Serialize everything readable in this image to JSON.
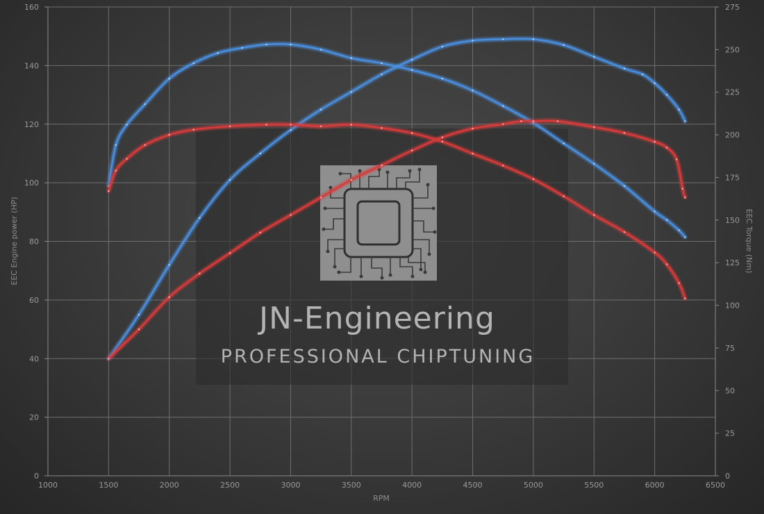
{
  "chart_data": {
    "type": "line",
    "xlabel": "RPM",
    "ylabel_left": "EEC Engine power (HP)",
    "ylabel_right": "EEC Torque (Nm)",
    "xlim": [
      1000,
      6500
    ],
    "ylim_left": [
      0,
      160
    ],
    "ylim_right": [
      0,
      275
    ],
    "x_ticks": [
      "1000",
      "1500",
      "2000",
      "2500",
      "3000",
      "3500",
      "4000",
      "4500",
      "5000",
      "5500",
      "6000",
      "6500"
    ],
    "y_left_ticks": [
      "0",
      "20",
      "40",
      "60",
      "80",
      "100",
      "120",
      "140",
      "160"
    ],
    "y_right_ticks": [
      "0",
      "25",
      "50",
      "75",
      "100",
      "125",
      "150",
      "175",
      "200",
      "225",
      "250",
      "275"
    ],
    "grid": true,
    "series": [
      {
        "axis": "left",
        "color": "#4a8fe0",
        "points": [
          [
            1500,
            40
          ],
          [
            1750,
            55
          ],
          [
            2000,
            72
          ],
          [
            2250,
            88
          ],
          [
            2500,
            101
          ],
          [
            2750,
            110
          ],
          [
            3000,
            118
          ],
          [
            3250,
            125
          ],
          [
            3500,
            131
          ],
          [
            3750,
            137
          ],
          [
            4000,
            142
          ],
          [
            4250,
            146.5
          ],
          [
            4500,
            148.5
          ],
          [
            4750,
            149
          ],
          [
            5000,
            149
          ],
          [
            5250,
            147
          ],
          [
            5500,
            143
          ],
          [
            5750,
            139
          ],
          [
            5900,
            137
          ],
          [
            6000,
            134
          ],
          [
            6100,
            130
          ],
          [
            6200,
            125
          ],
          [
            6250,
            121
          ]
        ]
      },
      {
        "axis": "right",
        "color": "#4a8fe0",
        "points": [
          [
            1500,
            170
          ],
          [
            1560,
            194
          ],
          [
            1650,
            206
          ],
          [
            1800,
            218
          ],
          [
            2000,
            233
          ],
          [
            2200,
            242
          ],
          [
            2400,
            248
          ],
          [
            2600,
            251
          ],
          [
            2800,
            253
          ],
          [
            3000,
            253
          ],
          [
            3250,
            250
          ],
          [
            3500,
            245
          ],
          [
            3750,
            242
          ],
          [
            4000,
            238
          ],
          [
            4250,
            233
          ],
          [
            4500,
            226
          ],
          [
            4750,
            217
          ],
          [
            5000,
            207
          ],
          [
            5250,
            195
          ],
          [
            5500,
            183
          ],
          [
            5750,
            170
          ],
          [
            6000,
            155
          ],
          [
            6100,
            150
          ],
          [
            6200,
            144
          ],
          [
            6250,
            140
          ]
        ]
      },
      {
        "axis": "left",
        "color": "#d93a3a",
        "points": [
          [
            1500,
            40
          ],
          [
            1750,
            50
          ],
          [
            2000,
            61
          ],
          [
            2250,
            69
          ],
          [
            2500,
            76
          ],
          [
            2750,
            83
          ],
          [
            3000,
            89
          ],
          [
            3250,
            95
          ],
          [
            3500,
            101
          ],
          [
            3750,
            106
          ],
          [
            4000,
            111
          ],
          [
            4250,
            115.5
          ],
          [
            4500,
            118.5
          ],
          [
            4750,
            120
          ],
          [
            4900,
            121
          ],
          [
            5000,
            121
          ],
          [
            5200,
            121
          ],
          [
            5500,
            119
          ],
          [
            5750,
            117
          ],
          [
            6000,
            114
          ],
          [
            6100,
            112
          ],
          [
            6180,
            108
          ],
          [
            6230,
            98
          ],
          [
            6250,
            95
          ]
        ]
      },
      {
        "axis": "right",
        "color": "#d93a3a",
        "points": [
          [
            1500,
            167
          ],
          [
            1560,
            179
          ],
          [
            1650,
            186
          ],
          [
            1800,
            194
          ],
          [
            2000,
            200
          ],
          [
            2200,
            203
          ],
          [
            2500,
            205
          ],
          [
            2800,
            206
          ],
          [
            3000,
            206
          ],
          [
            3250,
            205
          ],
          [
            3500,
            206
          ],
          [
            3750,
            204
          ],
          [
            4000,
            201
          ],
          [
            4250,
            196
          ],
          [
            4500,
            189
          ],
          [
            4750,
            182
          ],
          [
            5000,
            174
          ],
          [
            5250,
            164
          ],
          [
            5500,
            153
          ],
          [
            5750,
            143
          ],
          [
            6000,
            131
          ],
          [
            6100,
            124
          ],
          [
            6200,
            113
          ],
          [
            6250,
            104
          ]
        ]
      }
    ]
  },
  "watermark": {
    "title": "JN-Engineering",
    "subtitle": "PROFESSIONAL CHIPTUNING",
    "icon": "circuit-chip-icon"
  }
}
